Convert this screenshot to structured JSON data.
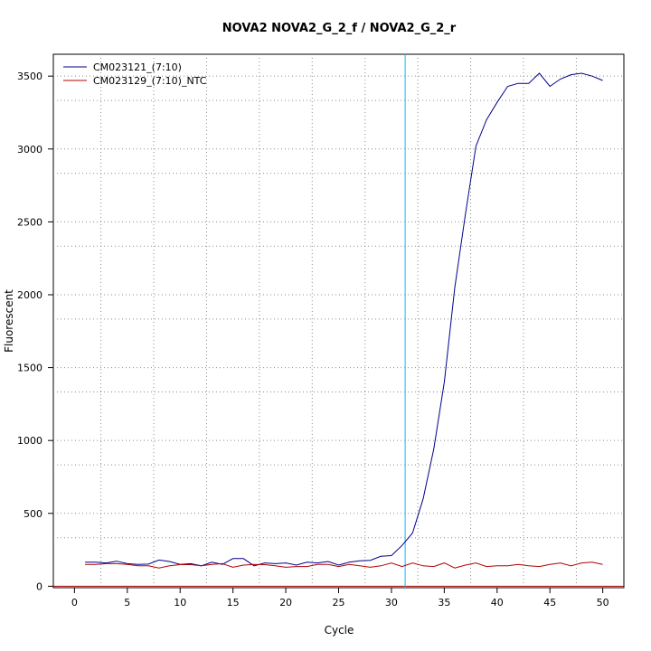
{
  "chart_data": {
    "type": "line",
    "title": "NOVA2  NOVA2_G_2_f / NOVA2_G_2_r",
    "xlabel": "Cycle",
    "ylabel": "Fluorescent",
    "xlim": [
      -2,
      52
    ],
    "ylim": [
      -10,
      3650
    ],
    "x_ticks": [
      0,
      5,
      10,
      15,
      20,
      25,
      30,
      35,
      40,
      45,
      50
    ],
    "y_ticks": [
      0,
      500,
      1000,
      1500,
      2000,
      2500,
      3000,
      3500
    ],
    "grid": true,
    "legend_position": "top-left",
    "threshold_x": 31.3,
    "threshold_color": "#00bfff",
    "baseline_y": 0,
    "baseline_color": "#b30000",
    "series": [
      {
        "name": "CM023121_(7:10)",
        "color": "#00008b",
        "x": [
          1,
          2,
          3,
          4,
          5,
          6,
          7,
          8,
          9,
          10,
          11,
          12,
          13,
          14,
          15,
          16,
          17,
          18,
          19,
          20,
          21,
          22,
          23,
          24,
          25,
          26,
          27,
          28,
          29,
          30,
          31,
          32,
          33,
          34,
          35,
          36,
          37,
          38,
          39,
          40,
          41,
          42,
          43,
          44,
          45,
          46,
          47,
          48,
          49,
          50
        ],
        "values": [
          165,
          165,
          160,
          172,
          155,
          150,
          152,
          180,
          170,
          150,
          155,
          140,
          165,
          150,
          190,
          190,
          140,
          160,
          155,
          160,
          145,
          165,
          160,
          170,
          145,
          165,
          175,
          178,
          205,
          210,
          280,
          365,
          600,
          940,
          1400,
          2050,
          2550,
          3020,
          3200,
          3320,
          3430,
          3450,
          3450,
          3520,
          3430,
          3480,
          3510,
          3520,
          3500,
          3470
        ]
      },
      {
        "name": "CM023129_(7:10)_NTC",
        "color": "#b30000",
        "x": [
          1,
          2,
          3,
          4,
          5,
          6,
          7,
          8,
          9,
          10,
          11,
          12,
          13,
          14,
          15,
          16,
          17,
          18,
          19,
          20,
          21,
          22,
          23,
          24,
          25,
          26,
          27,
          28,
          29,
          30,
          31,
          32,
          33,
          34,
          35,
          36,
          37,
          38,
          39,
          40,
          41,
          42,
          43,
          44,
          45,
          46,
          47,
          48,
          49,
          50
        ],
        "values": [
          150,
          150,
          155,
          155,
          150,
          140,
          140,
          125,
          140,
          148,
          148,
          140,
          150,
          155,
          130,
          145,
          150,
          148,
          140,
          130,
          135,
          135,
          150,
          150,
          135,
          150,
          140,
          130,
          140,
          160,
          135,
          160,
          140,
          135,
          160,
          125,
          145,
          160,
          135,
          140,
          140,
          150,
          140,
          135,
          150,
          160,
          140,
          160,
          165,
          150
        ]
      }
    ]
  }
}
